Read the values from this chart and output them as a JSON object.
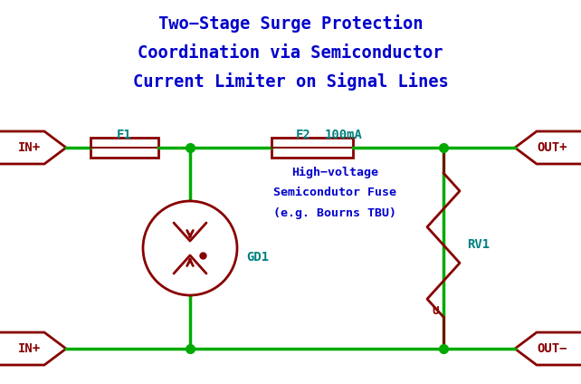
{
  "title_lines": [
    "Two−Stage Surge Protection",
    "Coordination via Semiconductor",
    "Current Limiter on Signal Lines"
  ],
  "title_color": "#0000CC",
  "wire_color": "#00AA00",
  "component_color": "#880000",
  "label_color_green": "#008080",
  "label_color_blue": "#0000CC",
  "bg_color": "#FFFFFF",
  "figsize": [
    6.42,
    4.24
  ],
  "dpi": 100
}
